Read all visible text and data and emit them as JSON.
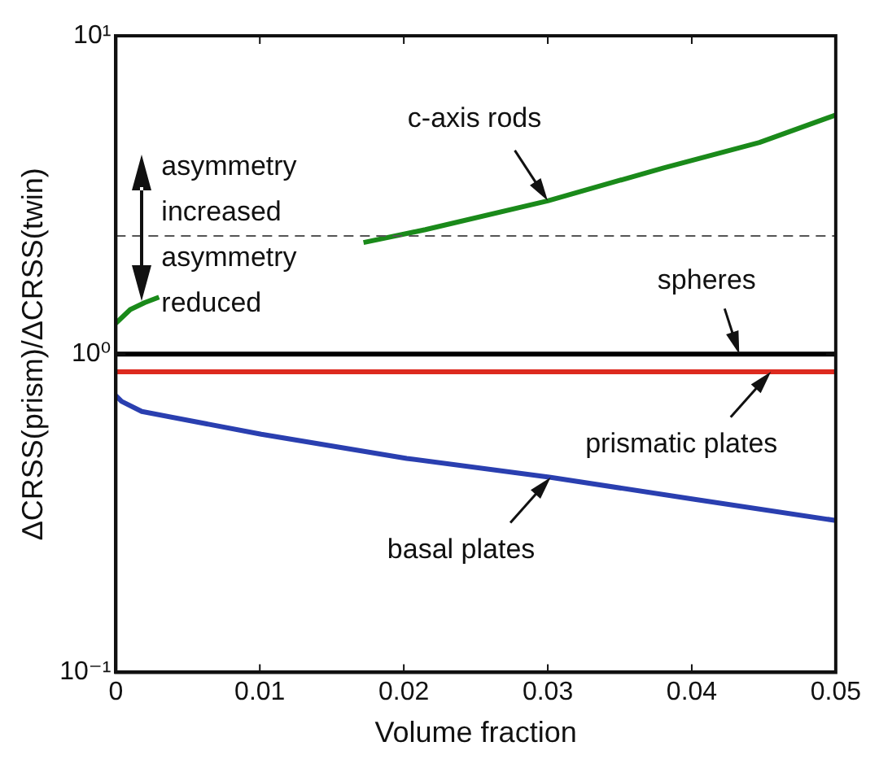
{
  "chart_data": {
    "type": "line",
    "xlabel": "Volume fraction",
    "ylabel": "ΔCRSS(prism)/ΔCRSS(twin)",
    "log": "y",
    "grid": false,
    "legend": false,
    "marker": "none",
    "line_style": "solid",
    "xlim": [
      0,
      0.05
    ],
    "xticks": [
      0,
      0.01,
      0.02,
      0.03,
      0.04,
      0.05
    ],
    "ylim": [
      0.1,
      10
    ],
    "yticks": [
      {
        "value": 0.1,
        "label": "10⁻¹"
      },
      {
        "value": 1,
        "label": "10⁰"
      },
      {
        "value": 10,
        "label": "10¹"
      }
    ],
    "series": [
      {
        "color": "#1a8a1a",
        "x": [
          0,
          0.001,
          0.002,
          0.003,
          0.01,
          0.0172,
          0.0215,
          0.03,
          0.038,
          0.0447,
          0.05
        ],
        "values": [
          1.25,
          1.38,
          1.45,
          1.51,
          null,
          2.24,
          2.46,
          3.03,
          3.84,
          4.62,
          5.64
        ]
      },
      {
        "color": "#000000",
        "x": [
          0,
          0.05
        ],
        "values": [
          1,
          1
        ]
      },
      {
        "color": "#dd2a1f",
        "x": [
          0,
          0.05
        ],
        "values": [
          0.88,
          0.88
        ]
      },
      {
        "color": "#2a3fb0",
        "x": [
          0,
          0.0004,
          0.0018,
          0.0101,
          0.0202,
          0.0302,
          0.0401,
          0.05
        ],
        "values": [
          0.74,
          0.71,
          0.66,
          0.56,
          0.47,
          0.41,
          0.35,
          0.3
        ]
      }
    ],
    "ref_lines": [
      {
        "axis": "y",
        "value": 2.35,
        "color": "#555555",
        "line_style": "dashed"
      }
    ],
    "annotations": [
      {
        "text": "c-axis rods",
        "x": 0.03,
        "y": 3.03
      },
      {
        "text": "spheres",
        "x": 0.0433,
        "y": 1
      },
      {
        "text": "prismatic plates",
        "x": 0.0455,
        "y": 0.88
      },
      {
        "text": "basal plates",
        "x": 0.0302,
        "y": 0.41
      },
      "asymmetry increased",
      "asymmetry reduced"
    ]
  }
}
